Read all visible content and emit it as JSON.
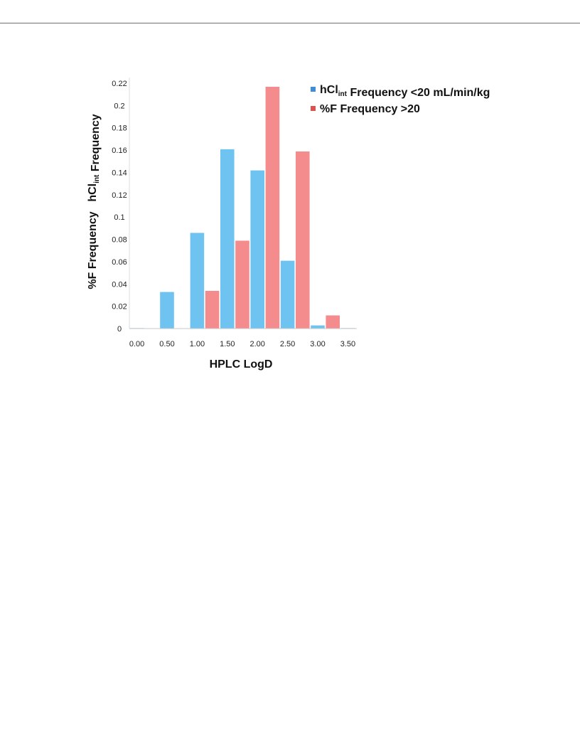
{
  "chart_data": {
    "type": "bar",
    "xlabel": "HPLC LogD",
    "ylabel_lines": [
      {
        "parts": [
          {
            "text": "hCl",
            "sub": "int"
          },
          {
            "text": " Frequency"
          }
        ]
      },
      {
        "parts": [
          {
            "text": "%F Frequency"
          }
        ]
      }
    ],
    "x_tick_labels": [
      "0.00",
      "0.50",
      "1.00",
      "1.50",
      "2.00",
      "2.50",
      "3.00",
      "3.50"
    ],
    "y_tick_labels": [
      "0",
      "0.02",
      "0.04",
      "0.06",
      "0.08",
      "0.1",
      "0.12",
      "0.14",
      "0.16",
      "0.18",
      "0.2",
      "0.22"
    ],
    "ylim": [
      0,
      0.22
    ],
    "xlim": [
      0,
      3.75
    ],
    "bin_width": 0.25,
    "legend_position": "top-right",
    "series": [
      {
        "name_parts": [
          {
            "text": "hCl",
            "sub": "int"
          },
          {
            "text": " Frequency <20 mL/min/kg"
          }
        ],
        "color": "#6EC3F0",
        "legend_color": "#3F8DD8",
        "bins": [
          {
            "x": 0.0,
            "value": 0.0
          },
          {
            "x": 0.5,
            "value": 0.033
          },
          {
            "x": 1.0,
            "value": 0.086
          },
          {
            "x": 1.5,
            "value": 0.161
          },
          {
            "x": 2.0,
            "value": 0.142
          },
          {
            "x": 2.5,
            "value": 0.061
          },
          {
            "x": 3.0,
            "value": 0.003
          },
          {
            "x": 3.5,
            "value": 0.0
          }
        ]
      },
      {
        "name_parts": [
          {
            "text": "%F Frequency >20"
          }
        ],
        "color": "#F48B8D",
        "legend_color": "#D9534F",
        "bins": [
          {
            "x": 1.25,
            "value": 0.034
          },
          {
            "x": 1.75,
            "value": 0.079
          },
          {
            "x": 2.25,
            "value": 0.217
          },
          {
            "x": 2.75,
            "value": 0.159
          },
          {
            "x": 3.25,
            "value": 0.012
          }
        ]
      }
    ]
  }
}
